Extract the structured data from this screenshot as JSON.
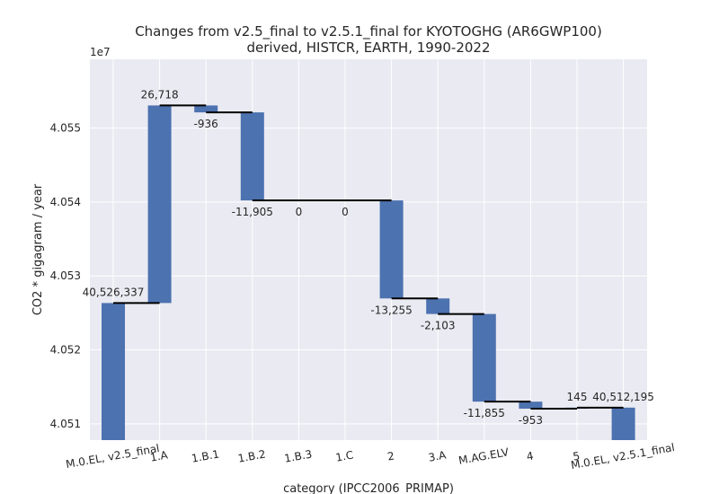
{
  "chart_data": {
    "type": "waterfall",
    "title": "Changes from v2.5_final to v2.5.1_final for KYOTOGHG (AR6GWP100)",
    "subtitle": "derived, HISTCR, EARTH, 1990-2022",
    "xlabel": "category (IPCC2006_PRIMAP)",
    "ylabel": "CO2 * gigagram / year",
    "y_offset_label": "1e7",
    "ylim": [
      40507800,
      40559300
    ],
    "yticks": [
      40510000,
      40520000,
      40530000,
      40540000,
      40550000
    ],
    "ytick_labels": [
      "4.051",
      "4.052",
      "4.053",
      "4.054",
      "4.055"
    ],
    "grid": true,
    "bar_color": "#4c72b0",
    "connector_color": "#000000",
    "background_color": "#eaeaf2",
    "categories": [
      "M.0.EL, v2.5_final",
      "1.A",
      "1.B.1",
      "1.B.2",
      "1.B.3",
      "1.C",
      "2",
      "3.A",
      "M.AG.ELV",
      "4",
      "5",
      "M.0.EL, v2.5.1_final"
    ],
    "values": [
      40526337,
      26718,
      -936,
      -11905,
      0,
      0,
      -13255,
      -2103,
      -11855,
      -953,
      145,
      40512195
    ],
    "labels": [
      "40,526,337",
      "26,718",
      "-936",
      "-11,905",
      "0",
      "0",
      "-13,255",
      "-2,103",
      "-11,855",
      "-953",
      "145",
      "40,512,195"
    ],
    "is_total": [
      true,
      false,
      false,
      false,
      false,
      false,
      false,
      false,
      false,
      false,
      false,
      true
    ]
  }
}
